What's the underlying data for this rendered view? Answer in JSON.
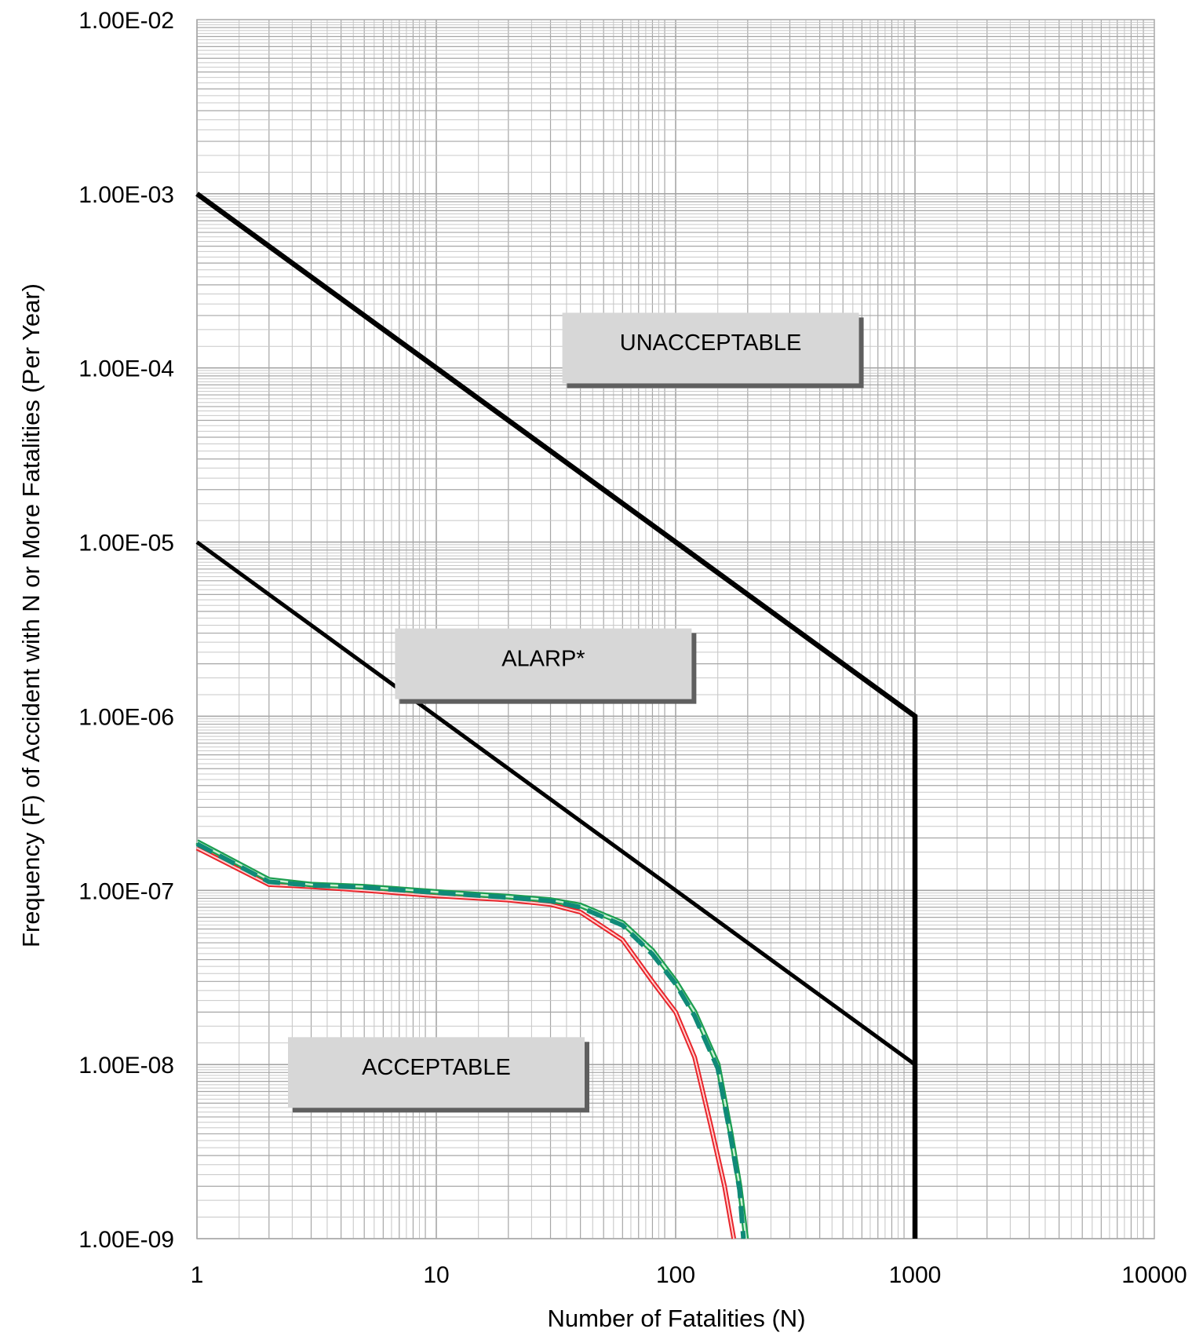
{
  "chart_data": {
    "type": "line",
    "xlabel": "Number  of Fatalities (N)",
    "ylabel": "Frequency (F) of Accident with N or More Fatalities (Per Year)",
    "x_scale": "log",
    "y_scale": "log",
    "xlim": [
      1,
      10000
    ],
    "ylim": [
      1e-09,
      0.01
    ],
    "grid": true,
    "x_ticks": [
      {
        "value": 1,
        "label": "1"
      },
      {
        "value": 10,
        "label": "10"
      },
      {
        "value": 100,
        "label": "100"
      },
      {
        "value": 1000,
        "label": "1000"
      },
      {
        "value": 10000,
        "label": "10000"
      }
    ],
    "y_ticks": [
      {
        "value": 0.01,
        "label": "1.00E-02"
      },
      {
        "value": 0.001,
        "label": "1.00E-03"
      },
      {
        "value": 0.0001,
        "label": "1.00E-04"
      },
      {
        "value": 1e-05,
        "label": "1.00E-05"
      },
      {
        "value": 1e-06,
        "label": "1.00E-06"
      },
      {
        "value": 1e-07,
        "label": "1.00E-07"
      },
      {
        "value": 1e-08,
        "label": "1.00E-08"
      },
      {
        "value": 1e-09,
        "label": "1.00E-09"
      }
    ],
    "series": [
      {
        "style": "boundary-upper",
        "color": "#000000",
        "points": [
          [
            1,
            0.001
          ],
          [
            1000,
            1e-06
          ],
          [
            1000,
            1e-09
          ]
        ]
      },
      {
        "style": "boundary-lower",
        "color": "#000000",
        "points": [
          [
            1,
            1e-05
          ],
          [
            1000,
            1e-08
          ]
        ]
      },
      {
        "style": "curve-red",
        "color": "#e8252b",
        "points": [
          [
            1,
            1.75e-07
          ],
          [
            2,
            1.08e-07
          ],
          [
            3,
            1.05e-07
          ],
          [
            5,
            1e-07
          ],
          [
            10,
            9.3e-08
          ],
          [
            20,
            8.8e-08
          ],
          [
            30,
            8.3e-08
          ],
          [
            40,
            7.5e-08
          ],
          [
            60,
            5.2e-08
          ],
          [
            80,
            3e-08
          ],
          [
            100,
            2e-08
          ],
          [
            120,
            1.1e-08
          ],
          [
            140,
            4.5e-09
          ],
          [
            160,
            2e-09
          ],
          [
            175,
            1e-09
          ]
        ]
      },
      {
        "style": "curve-green",
        "color": "#1c9e50",
        "points": [
          [
            1,
            1.9e-07
          ],
          [
            2,
            1.15e-07
          ],
          [
            3,
            1.08e-07
          ],
          [
            5,
            1.05e-07
          ],
          [
            10,
            9.8e-08
          ],
          [
            20,
            9.2e-08
          ],
          [
            30,
            8.8e-08
          ],
          [
            40,
            8.2e-08
          ],
          [
            60,
            6.5e-08
          ],
          [
            80,
            4.5e-08
          ],
          [
            100,
            3e-08
          ],
          [
            120,
            2e-08
          ],
          [
            150,
            1e-08
          ],
          [
            170,
            4e-09
          ],
          [
            185,
            2e-09
          ],
          [
            197,
            1e-09
          ]
        ]
      },
      {
        "style": "curve-teal-dashed",
        "color": "#0f8a78",
        "points": [
          [
            1,
            1.85e-07
          ],
          [
            2,
            1.12e-07
          ],
          [
            3,
            1.07e-07
          ],
          [
            5,
            1.04e-07
          ],
          [
            10,
            9.7e-08
          ],
          [
            20,
            9.1e-08
          ],
          [
            30,
            8.7e-08
          ],
          [
            40,
            8e-08
          ],
          [
            60,
            6.3e-08
          ],
          [
            80,
            4.3e-08
          ],
          [
            100,
            2.9e-08
          ],
          [
            120,
            1.9e-08
          ],
          [
            150,
            9.5e-09
          ],
          [
            170,
            3.8e-09
          ],
          [
            185,
            1.9e-09
          ],
          [
            192,
            1e-09
          ]
        ]
      }
    ],
    "regions": [
      {
        "label": "UNACCEPTABLE",
        "x": 140,
        "y": 0.00013
      },
      {
        "label": "ALARP*",
        "x": 28,
        "y": 2e-06
      },
      {
        "label": "ACCEPTABLE",
        "x": 10,
        "y": 9e-09
      }
    ]
  }
}
